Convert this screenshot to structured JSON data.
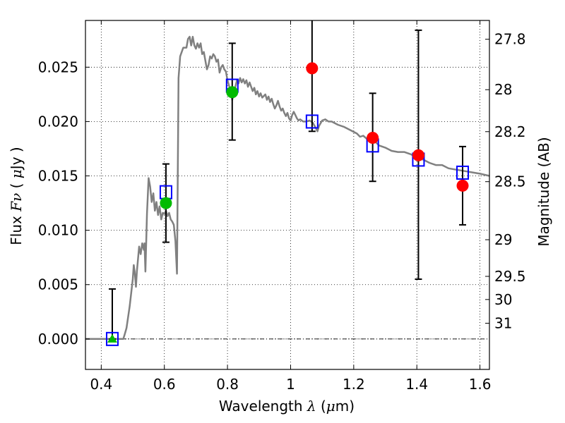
{
  "chart_data": {
    "type": "scatter",
    "xlabel": "Wavelength  λ (μm)",
    "ylabel": "Flux  Fν  ( μJy )",
    "ylabel_right": "Magnitude (AB)",
    "xlim": [
      0.35,
      1.63
    ],
    "ylim": [
      -0.0028,
      0.0293
    ],
    "grid": true,
    "x_ticks": [
      0.4,
      0.6,
      0.8,
      1.0,
      1.2,
      1.4,
      1.6
    ],
    "x_tick_labels": [
      "0.4",
      "0.6",
      "0.8",
      "1",
      "1.2",
      "1.4",
      "1.6"
    ],
    "y_ticks": [
      0.0,
      0.005,
      0.01,
      0.015,
      0.02,
      0.025
    ],
    "y_tick_labels": [
      "0.000",
      "0.005",
      "0.010",
      "0.015",
      "0.020",
      "0.025"
    ],
    "right_ticks": [
      {
        "label": "27.8",
        "flux": 0.02757
      },
      {
        "label": "28",
        "flux": 0.02293
      },
      {
        "label": "28.2",
        "flux": 0.01907
      },
      {
        "label": "28.5",
        "flux": 0.01447
      },
      {
        "label": "29",
        "flux": 0.00913
      },
      {
        "label": "29.5",
        "flux": 0.00576
      },
      {
        "label": "30",
        "flux": 0.00363
      },
      {
        "label": "31",
        "flux": 0.00145
      }
    ],
    "sed_model": {
      "color": "#808080",
      "points": [
        [
          0.35,
          0.0
        ],
        [
          0.47,
          0.0
        ],
        [
          0.475,
          0.0005
        ],
        [
          0.48,
          0.001
        ],
        [
          0.49,
          0.003
        ],
        [
          0.5,
          0.0055
        ],
        [
          0.503,
          0.0068
        ],
        [
          0.506,
          0.0062
        ],
        [
          0.51,
          0.0048
        ],
        [
          0.513,
          0.0062
        ],
        [
          0.52,
          0.0085
        ],
        [
          0.525,
          0.0078
        ],
        [
          0.53,
          0.0088
        ],
        [
          0.535,
          0.0082
        ],
        [
          0.537,
          0.0088
        ],
        [
          0.54,
          0.0062
        ],
        [
          0.545,
          0.0115
        ],
        [
          0.55,
          0.0148
        ],
        [
          0.555,
          0.014
        ],
        [
          0.56,
          0.0126
        ],
        [
          0.565,
          0.0134
        ],
        [
          0.57,
          0.0118
        ],
        [
          0.575,
          0.0126
        ],
        [
          0.58,
          0.0114
        ],
        [
          0.585,
          0.0122
        ],
        [
          0.59,
          0.011
        ],
        [
          0.595,
          0.0116
        ],
        [
          0.6,
          0.0115
        ],
        [
          0.605,
          0.0118
        ],
        [
          0.61,
          0.0113
        ],
        [
          0.615,
          0.0116
        ],
        [
          0.62,
          0.011
        ],
        [
          0.625,
          0.0108
        ],
        [
          0.63,
          0.0105
        ],
        [
          0.635,
          0.009
        ],
        [
          0.638,
          0.0072
        ],
        [
          0.64,
          0.006
        ],
        [
          0.645,
          0.024
        ],
        [
          0.65,
          0.026
        ],
        [
          0.66,
          0.0268
        ],
        [
          0.67,
          0.0268
        ],
        [
          0.675,
          0.0276
        ],
        [
          0.68,
          0.0278
        ],
        [
          0.685,
          0.027
        ],
        [
          0.69,
          0.0278
        ],
        [
          0.695,
          0.027
        ],
        [
          0.7,
          0.0267
        ],
        [
          0.705,
          0.0272
        ],
        [
          0.71,
          0.0268
        ],
        [
          0.715,
          0.0272
        ],
        [
          0.72,
          0.0262
        ],
        [
          0.725,
          0.0264
        ],
        [
          0.73,
          0.0256
        ],
        [
          0.735,
          0.0248
        ],
        [
          0.74,
          0.0252
        ],
        [
          0.745,
          0.026
        ],
        [
          0.75,
          0.0258
        ],
        [
          0.755,
          0.0262
        ],
        [
          0.76,
          0.026
        ],
        [
          0.765,
          0.0255
        ],
        [
          0.77,
          0.0257
        ],
        [
          0.775,
          0.0245
        ],
        [
          0.78,
          0.025
        ],
        [
          0.785,
          0.0252
        ],
        [
          0.79,
          0.0248
        ],
        [
          0.795,
          0.0246
        ],
        [
          0.8,
          0.0238
        ],
        [
          0.805,
          0.0233
        ],
        [
          0.81,
          0.0228
        ],
        [
          0.815,
          0.022
        ],
        [
          0.82,
          0.0225
        ],
        [
          0.825,
          0.0232
        ],
        [
          0.83,
          0.0238
        ],
        [
          0.835,
          0.0235
        ],
        [
          0.84,
          0.024
        ],
        [
          0.845,
          0.0236
        ],
        [
          0.85,
          0.0239
        ],
        [
          0.855,
          0.0235
        ],
        [
          0.86,
          0.0238
        ],
        [
          0.865,
          0.0232
        ],
        [
          0.87,
          0.0236
        ],
        [
          0.875,
          0.0232
        ],
        [
          0.88,
          0.0228
        ],
        [
          0.885,
          0.0231
        ],
        [
          0.89,
          0.0225
        ],
        [
          0.895,
          0.0228
        ],
        [
          0.9,
          0.0223
        ],
        [
          0.905,
          0.0226
        ],
        [
          0.91,
          0.0222
        ],
        [
          0.92,
          0.0225
        ],
        [
          0.925,
          0.022
        ],
        [
          0.93,
          0.0223
        ],
        [
          0.935,
          0.0218
        ],
        [
          0.94,
          0.0221
        ],
        [
          0.945,
          0.0216
        ],
        [
          0.95,
          0.0212
        ],
        [
          0.955,
          0.0215
        ],
        [
          0.96,
          0.0219
        ],
        [
          0.965,
          0.0214
        ],
        [
          0.97,
          0.021
        ],
        [
          0.975,
          0.0212
        ],
        [
          0.98,
          0.0208
        ],
        [
          0.985,
          0.0205
        ],
        [
          0.99,
          0.0208
        ],
        [
          0.995,
          0.0203
        ],
        [
          1.0,
          0.0201
        ],
        [
          1.005,
          0.0206
        ],
        [
          1.01,
          0.0209
        ],
        [
          1.015,
          0.0206
        ],
        [
          1.02,
          0.0203
        ],
        [
          1.025,
          0.0201
        ],
        [
          1.03,
          0.0202
        ],
        [
          1.04,
          0.02
        ],
        [
          1.05,
          0.02
        ],
        [
          1.06,
          0.0201
        ],
        [
          1.07,
          0.0199
        ],
        [
          1.08,
          0.0194
        ],
        [
          1.085,
          0.0191
        ],
        [
          1.09,
          0.0196
        ],
        [
          1.1,
          0.0201
        ],
        [
          1.11,
          0.0202
        ],
        [
          1.12,
          0.02
        ],
        [
          1.13,
          0.02
        ],
        [
          1.15,
          0.0197
        ],
        [
          1.17,
          0.0195
        ],
        [
          1.19,
          0.0192
        ],
        [
          1.21,
          0.0189
        ],
        [
          1.22,
          0.0186
        ],
        [
          1.23,
          0.0187
        ],
        [
          1.25,
          0.0182
        ],
        [
          1.27,
          0.0181
        ],
        [
          1.28,
          0.0178
        ],
        [
          1.3,
          0.0176
        ],
        [
          1.32,
          0.0173
        ],
        [
          1.34,
          0.0172
        ],
        [
          1.36,
          0.0172
        ],
        [
          1.38,
          0.017
        ],
        [
          1.4,
          0.0167
        ],
        [
          1.42,
          0.0165
        ],
        [
          1.44,
          0.0162
        ],
        [
          1.46,
          0.016
        ],
        [
          1.48,
          0.016
        ],
        [
          1.5,
          0.0157
        ],
        [
          1.52,
          0.0156
        ],
        [
          1.54,
          0.0155
        ],
        [
          1.56,
          0.0154
        ],
        [
          1.58,
          0.0153
        ],
        [
          1.6,
          0.0152
        ],
        [
          1.63,
          0.015
        ]
      ]
    },
    "model_squares": {
      "color": "#0000ff",
      "points": [
        [
          0.435,
          0.0
        ],
        [
          0.605,
          0.0135
        ],
        [
          0.815,
          0.0233
        ],
        [
          1.068,
          0.02
        ],
        [
          1.26,
          0.0178
        ],
        [
          1.405,
          0.0165
        ],
        [
          1.545,
          0.0153
        ]
      ]
    },
    "red_points": {
      "color": "#ff0000",
      "points": [
        {
          "x": 1.068,
          "y": 0.0249,
          "ylo": 0.0191,
          "yhi": 0.0312
        },
        {
          "x": 1.26,
          "y": 0.0185,
          "ylo": 0.0145,
          "yhi": 0.0226
        },
        {
          "x": 1.405,
          "y": 0.0169,
          "ylo": 0.0055,
          "yhi": 0.0284
        },
        {
          "x": 1.545,
          "y": 0.0141,
          "ylo": 0.0105,
          "yhi": 0.0177
        }
      ]
    },
    "green_points": {
      "color": "#00bb00",
      "points": [
        {
          "x": 0.605,
          "y": 0.0125,
          "ylo": 0.0089,
          "yhi": 0.0161
        },
        {
          "x": 0.815,
          "y": 0.0227,
          "ylo": 0.0183,
          "yhi": 0.0272
        }
      ]
    },
    "green_triangle": {
      "color": "#00bb00",
      "x": 0.435,
      "y": 0.0,
      "errbar_top": 0.0046
    },
    "zero_line": {
      "y": 0.0,
      "style": "dash-dot"
    }
  }
}
